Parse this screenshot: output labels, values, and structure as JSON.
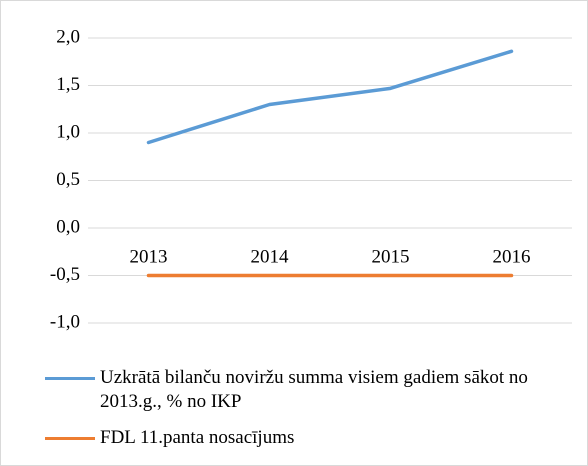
{
  "chart_data": {
    "type": "line",
    "categories": [
      "2013",
      "2014",
      "2015",
      "2016"
    ],
    "series": [
      {
        "name": "Uzkrātā bilanču noviržu summa visiem gadiem sākot no 2013.g., % no IKP",
        "color": "#5b9bd5",
        "values": [
          0.9,
          1.3,
          1.47,
          1.86
        ]
      },
      {
        "name": "FDL 11.panta nosacījums",
        "color": "#ed7d31",
        "values": [
          -0.5,
          -0.5,
          -0.5,
          -0.5
        ]
      }
    ],
    "ylim": [
      -1,
      2
    ],
    "yticks": [
      {
        "value": -1,
        "label": "-1,0"
      },
      {
        "value": -0.5,
        "label": "-0,5"
      },
      {
        "value": 0,
        "label": "0,0"
      },
      {
        "value": 0.5,
        "label": "0,5"
      },
      {
        "value": 1,
        "label": "1,0"
      },
      {
        "value": 1.5,
        "label": "1,5"
      },
      {
        "value": 2,
        "label": "2,0"
      }
    ],
    "grid": true,
    "legend": "bottom"
  }
}
